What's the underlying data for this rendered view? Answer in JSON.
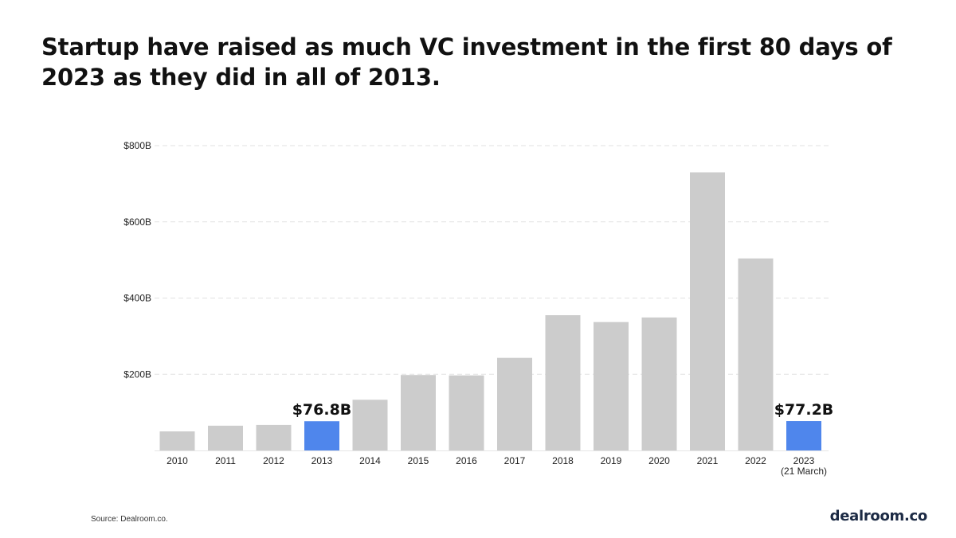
{
  "title": "Startup have raised as much VC investment in the first 80 days of 2023 as they did in all of 2013.",
  "source": "Source: Dealroom.co.",
  "brand": "dealroom.co",
  "colors": {
    "bar_default": "#cccccc",
    "bar_highlight": "#4f86ec",
    "grid": "#e2e2e2",
    "text": "#111111"
  },
  "chart_data": {
    "type": "bar",
    "title": "Startup have raised as much VC investment in the first 80 days of 2023 as they did in all of 2013.",
    "xlabel": "",
    "ylabel": "",
    "ylim": [
      0,
      800
    ],
    "y_unit": "billion USD",
    "grid": true,
    "yticks": [
      {
        "value": 200,
        "label": "$200B"
      },
      {
        "value": 400,
        "label": "$400B"
      },
      {
        "value": 600,
        "label": "$600B"
      },
      {
        "value": 800,
        "label": "$800B"
      }
    ],
    "categories": [
      "2010",
      "2011",
      "2012",
      "2013",
      "2014",
      "2015",
      "2016",
      "2017",
      "2018",
      "2019",
      "2020",
      "2021",
      "2022",
      "2023"
    ],
    "category_sublabels": [
      "",
      "",
      "",
      "",
      "",
      "",
      "",
      "",
      "",
      "",
      "",
      "",
      "",
      "(21 March)"
    ],
    "values": [
      50,
      65,
      67,
      76.8,
      133,
      198,
      197,
      243,
      355,
      337,
      349,
      730,
      504,
      77.2
    ],
    "highlighted": [
      false,
      false,
      false,
      true,
      false,
      false,
      false,
      false,
      false,
      false,
      false,
      false,
      false,
      true
    ],
    "data_labels": [
      "",
      "",
      "",
      "$76.8B",
      "",
      "",
      "",
      "",
      "",
      "",
      "",
      "",
      "",
      "$77.2B"
    ]
  }
}
